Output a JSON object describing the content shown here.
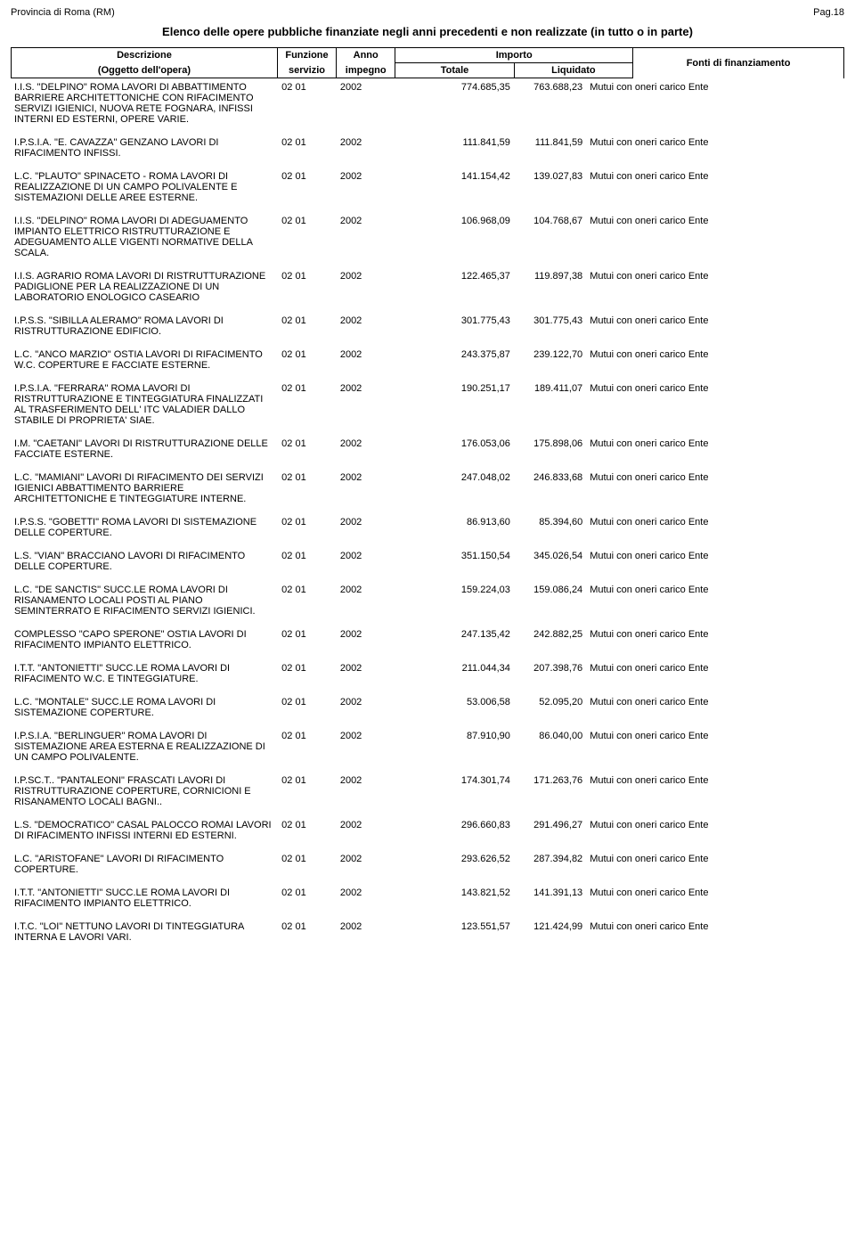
{
  "header": {
    "province": "Provincia di Roma (RM)",
    "page": "Pag.18",
    "title": "Elenco delle opere pubbliche finanziate negli anni precedenti e non realizzate (in tutto o in parte)"
  },
  "columns": {
    "desc1": "Descrizione",
    "desc2": "(Oggetto dell'opera)",
    "fun1": "Funzione",
    "fun2": "servizio",
    "anno1": "Anno",
    "anno2": "impegno",
    "importo": "Importo",
    "totale": "Totale",
    "liquidato": "Liquidato",
    "fonti": "Fonti di finanziamento"
  },
  "rows": [
    {
      "desc": "I.I.S. \"DELPINO\"  ROMA  LAVORI DI ABBATTIMENTO BARRIERE ARCHITETTONICHE CON RIFACIMENTO SERVIZI IGIENICI, NUOVA RETE FOGNARA, INFISSI INTERNI ED ESTERNI, OPERE VARIE.",
      "fun": "02 01",
      "anno": "2002",
      "tot": "774.685,35",
      "liq": "763.688,23",
      "font": "Mutui con oneri carico Ente"
    },
    {
      "desc": "I.P.S.I.A. \"E. CAVAZZA\"  GENZANO LAVORI DI  RIFACIMENTO INFISSI.",
      "fun": "02 01",
      "anno": "2002",
      "tot": "111.841,59",
      "liq": "111.841,59",
      "font": "Mutui con oneri carico Ente"
    },
    {
      "desc": "L.C. \"PLAUTO\" SPINACETO -  ROMA LAVORI DI REALIZZAZIONE DI UN CAMPO POLIVALENTE E SISTEMAZIONI DELLE AREE ESTERNE.",
      "fun": "02 01",
      "anno": "2002",
      "tot": "141.154,42",
      "liq": "139.027,83",
      "font": "Mutui con oneri carico Ente"
    },
    {
      "desc": "I.I.S. \"DELPINO\" ROMA  LAVORI DI ADEGUAMENTO IMPIANTO ELETTRICO RISTRUTTURAZIONE E ADEGUAMENTO ALLE VIGENTI NORMATIVE DELLA SCALA.",
      "fun": "02 01",
      "anno": "2002",
      "tot": "106.968,09",
      "liq": "104.768,67",
      "font": "Mutui con oneri carico Ente"
    },
    {
      "desc": "I.I.S.  AGRARIO  ROMA  LAVORI DI RISTRUTTURAZIONE PADIGLIONE PER LA REALIZZAZIONE DI UN LABORATORIO ENOLOGICO CASEARIO",
      "fun": "02 01",
      "anno": "2002",
      "tot": "122.465,37",
      "liq": "119.897,38",
      "font": "Mutui con oneri carico Ente"
    },
    {
      "desc": "I.P.S.S. \"SIBILLA ALERAMO\"  ROMA LAVORI DI RISTRUTTURAZIONE EDIFICIO.",
      "fun": "02 01",
      "anno": "2002",
      "tot": "301.775,43",
      "liq": "301.775,43",
      "font": "Mutui con oneri carico Ente"
    },
    {
      "desc": "L.C. \"ANCO MARZIO\"  OSTIA  LAVORI DI RIFACIMENTO W.C. COPERTURE E FACCIATE ESTERNE.",
      "fun": "02 01",
      "anno": "2002",
      "tot": "243.375,87",
      "liq": "239.122,70",
      "font": "Mutui con oneri carico Ente"
    },
    {
      "desc": "I.P.S.I.A. \"FERRARA\" ROMA  LAVORI DI RISTRUTTURAZIONE E TINTEGGIATURA FINALIZZATI AL TRASFERIMENTO DELL' ITC VALADIER DALLO STABILE DI PROPRIETA' SIAE.",
      "fun": "02 01",
      "anno": "2002",
      "tot": "190.251,17",
      "liq": "189.411,07",
      "font": "Mutui con oneri carico Ente"
    },
    {
      "desc": "I.M. \"CAETANI\"  LAVORI DI RISTRUTTURAZIONE DELLE FACCIATE ESTERNE.",
      "fun": "02 01",
      "anno": "2002",
      "tot": "176.053,06",
      "liq": "175.898,06",
      "font": "Mutui con oneri carico Ente"
    },
    {
      "desc": "L.C. \"MAMIANI\"  LAVORI DI RIFACIMENTO DEI SERVIZI IGIENICI ABBATTIMENTO BARRIERE ARCHITETTONICHE E TINTEGGIATURE INTERNE.",
      "fun": "02 01",
      "anno": "2002",
      "tot": "247.048,02",
      "liq": "246.833,68",
      "font": "Mutui con oneri carico Ente"
    },
    {
      "desc": "I.P.S.S. \"GOBETTI\"  ROMA  LAVORI DI SISTEMAZIONE DELLE COPERTURE.",
      "fun": "02 01",
      "anno": "2002",
      "tot": "86.913,60",
      "liq": "85.394,60",
      "font": "Mutui con oneri carico Ente"
    },
    {
      "desc": "L.S. \"VIAN\"  BRACCIANO  LAVORI DI RIFACIMENTO DELLE COPERTURE.",
      "fun": "02 01",
      "anno": "2002",
      "tot": "351.150,54",
      "liq": "345.026,54",
      "font": "Mutui con oneri carico Ente"
    },
    {
      "desc": "L.C. \"DE SANCTIS\"   SUCC.LE  ROMA LAVORI DI RISANAMENTO LOCALI POSTI AL PIANO SEMINTERRATO E RIFACIMENTO SERVIZI IGIENICI.",
      "fun": "02 01",
      "anno": "2002",
      "tot": "159.224,03",
      "liq": "159.086,24",
      "font": "Mutui con oneri carico Ente"
    },
    {
      "desc": "COMPLESSO \"CAPO SPERONE\"  OSTIA LAVORI DI  RIFACIMENTO IMPIANTO ELETTRICO.",
      "fun": "02 01",
      "anno": "2002",
      "tot": "247.135,42",
      "liq": "242.882,25",
      "font": "Mutui con oneri carico Ente"
    },
    {
      "desc": "I.T.T. \"ANTONIETTI\" SUCC.LE ROMA LAVORI DI  RIFACIMENTO W.C. E TINTEGGIATURE.",
      "fun": "02 01",
      "anno": "2002",
      "tot": "211.044,34",
      "liq": "207.398,76",
      "font": "Mutui con oneri carico Ente"
    },
    {
      "desc": "L.C. \"MONTALE\"  SUCC.LE ROMA LAVORI DI  SISTEMAZIONE COPERTURE.",
      "fun": "02 01",
      "anno": "2002",
      "tot": "53.006,58",
      "liq": "52.095,20",
      "font": "Mutui con oneri carico Ente"
    },
    {
      "desc": "I.P.S.I.A. \"BERLINGUER\"   ROMA LAVORI DI  SISTEMAZIONE AREA ESTERNA E REALIZZAZIONE DI UN CAMPO POLIVALENTE.",
      "fun": "02 01",
      "anno": "2002",
      "tot": "87.910,90",
      "liq": "86.040,00",
      "font": "Mutui con oneri carico Ente"
    },
    {
      "desc": "I.P.SC.T..  \"PANTALEONI\"   FRASCATI LAVORI DI  RISTRUTTURAZIONE COPERTURE, CORNICIONI E RISANAMENTO LOCALI BAGNI..",
      "fun": "02 01",
      "anno": "2002",
      "tot": "174.301,74",
      "liq": "171.263,76",
      "font": "Mutui con oneri carico Ente"
    },
    {
      "desc": "L.S. \"DEMOCRATICO\" CASAL PALOCCO ROMAI  LAVORI DI  RIFACIMENTO INFISSI INTERNI ED ESTERNI.",
      "fun": "02 01",
      "anno": "2002",
      "tot": "296.660,83",
      "liq": "291.496,27",
      "font": "Mutui con oneri carico Ente"
    },
    {
      "desc": "L.C. \"ARISTOFANE\"   LAVORI DI RIFACIMENTO COPERTURE.",
      "fun": "02 01",
      "anno": "2002",
      "tot": "293.626,52",
      "liq": "287.394,82",
      "font": "Mutui con oneri carico Ente"
    },
    {
      "desc": "I.T.T. \"ANTONIETTI\" SUCC.LE ROMA LAVORI DI RIFACIMENTO IMPIANTO ELETTRICO.",
      "fun": "02 01",
      "anno": "2002",
      "tot": "143.821,52",
      "liq": "141.391,13",
      "font": "Mutui con oneri carico Ente"
    },
    {
      "desc": "I.T.C. \"LOI\"  NETTUNO  LAVORI DI TINTEGGIATURA INTERNA E LAVORI VARI.",
      "fun": "02 01",
      "anno": "2002",
      "tot": "123.551,57",
      "liq": "121.424,99",
      "font": "Mutui con oneri carico Ente"
    }
  ]
}
